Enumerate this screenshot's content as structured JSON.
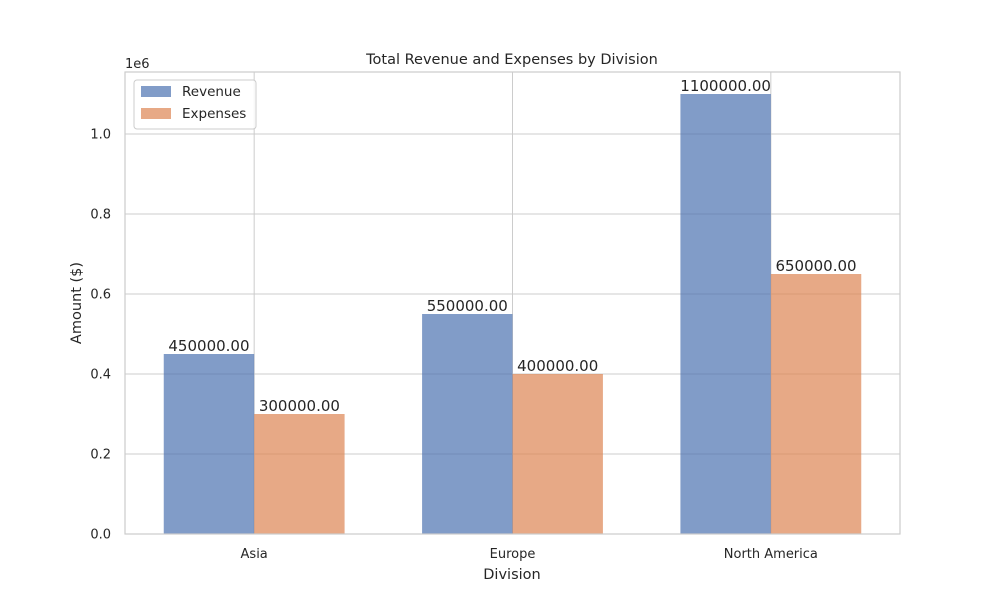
{
  "chart_data": {
    "type": "bar",
    "title": "Total Revenue and Expenses by Division",
    "xlabel": "Division",
    "ylabel": "Amount ($)",
    "y_offset_label": "1e6",
    "categories": [
      "Asia",
      "Europe",
      "North America"
    ],
    "series": [
      {
        "name": "Revenue",
        "values": [
          450000,
          550000,
          1100000
        ],
        "labels": [
          "450000.00",
          "550000.00",
          "1100000.00"
        ],
        "color": "#4c72b0"
      },
      {
        "name": "Expenses",
        "values": [
          300000,
          400000,
          650000
        ],
        "labels": [
          "300000.00",
          "400000.00",
          "650000.00"
        ],
        "color": "#dd8452"
      }
    ],
    "yticks": [
      0,
      200000,
      400000,
      600000,
      800000,
      1000000
    ],
    "ytick_labels": [
      "0.0",
      "0.2",
      "0.4",
      "0.6",
      "0.8",
      "1.0"
    ],
    "ylim": [
      0,
      1155000
    ],
    "grid": true,
    "legend_position": "top-left",
    "colors": {
      "grid": "#cccccc",
      "axes_edge": "#cccccc",
      "text": "#262626",
      "legend_edge": "#cccccc"
    }
  }
}
